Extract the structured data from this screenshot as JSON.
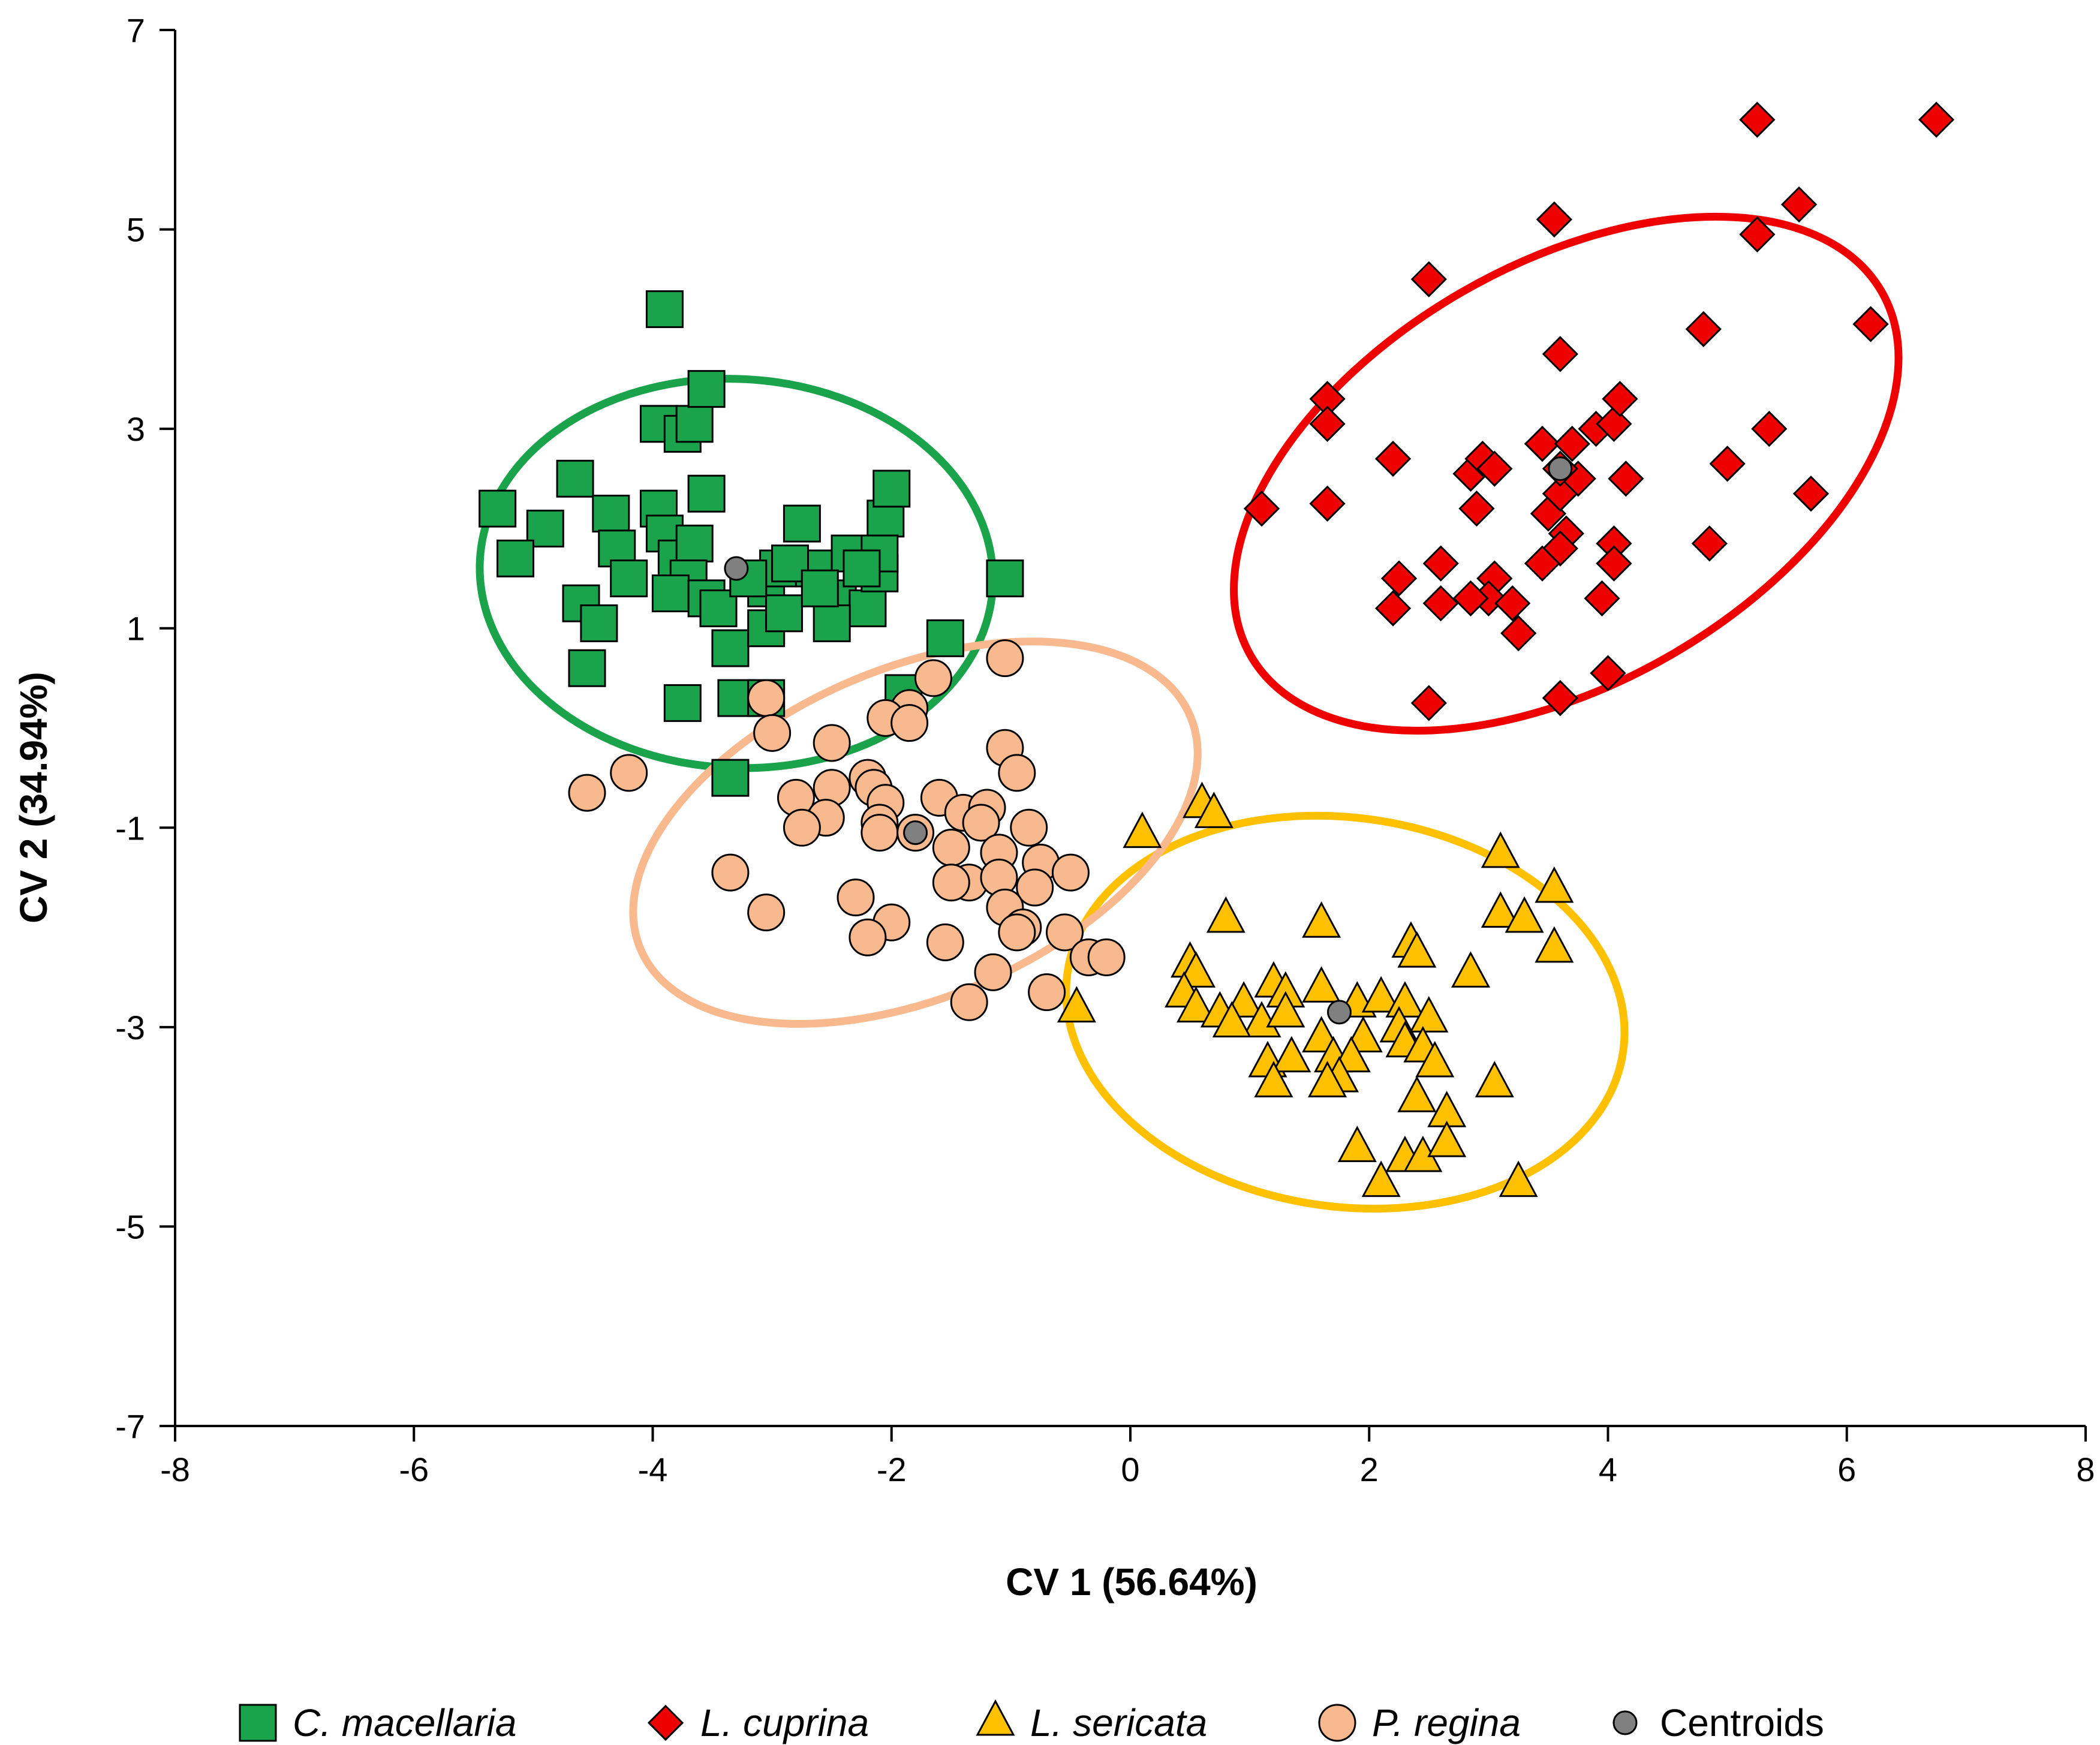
{
  "chart_data": {
    "type": "scatter",
    "xlabel": "CV 1 (56.64%)",
    "ylabel": "CV 2 (34.94%)",
    "xlim": [
      -8,
      8
    ],
    "ylim": [
      -7,
      7
    ],
    "x_ticks": [
      -8,
      -6,
      -4,
      -2,
      0,
      2,
      4,
      6,
      8
    ],
    "y_ticks": [
      -7,
      -5,
      -3,
      -1,
      1,
      3,
      5,
      7
    ],
    "x_tick_labels": [
      "-8",
      "-6",
      "-4",
      "-2",
      "0",
      "2",
      "4",
      "6",
      "8"
    ],
    "y_tick_labels": [
      "-7",
      "-5",
      "-3",
      "-1",
      "1",
      "3",
      "5",
      "7"
    ],
    "grid": false,
    "legend_position": "bottom",
    "series": [
      {
        "name": "C. macellaria",
        "marker": "square",
        "color": "#1aa34a",
        "italic": true,
        "points": [
          [
            -3.9,
            4.2
          ],
          [
            -4.9,
            2.0
          ],
          [
            -5.3,
            2.2
          ],
          [
            -5.15,
            1.7
          ],
          [
            -4.65,
            2.5
          ],
          [
            -4.35,
            2.15
          ],
          [
            -4.3,
            1.8
          ],
          [
            -4.6,
            1.25
          ],
          [
            -4.45,
            1.05
          ],
          [
            -4.55,
            0.6
          ],
          [
            -4.2,
            1.5
          ],
          [
            -3.95,
            3.05
          ],
          [
            -3.75,
            2.95
          ],
          [
            -3.65,
            3.05
          ],
          [
            -3.55,
            3.4
          ],
          [
            -3.55,
            2.35
          ],
          [
            -3.95,
            2.2
          ],
          [
            -3.9,
            1.95
          ],
          [
            -3.8,
            1.7
          ],
          [
            -3.65,
            1.85
          ],
          [
            -3.7,
            1.5
          ],
          [
            -3.85,
            1.35
          ],
          [
            -3.55,
            1.3
          ],
          [
            -3.45,
            1.2
          ],
          [
            -3.35,
            0.8
          ],
          [
            -3.75,
            0.25
          ],
          [
            -3.3,
            0.3
          ],
          [
            -3.35,
            -0.5
          ],
          [
            -3.05,
            1.0
          ],
          [
            -3.05,
            1.4
          ],
          [
            -2.95,
            1.6
          ],
          [
            -2.9,
            1.15
          ],
          [
            -2.75,
            2.05
          ],
          [
            -2.65,
            1.6
          ],
          [
            -2.45,
            1.3
          ],
          [
            -2.35,
            1.75
          ],
          [
            -2.2,
            1.2
          ],
          [
            -2.1,
            1.55
          ],
          [
            -2.05,
            2.1
          ],
          [
            -2.0,
            2.4
          ],
          [
            -2.1,
            1.75
          ],
          [
            -2.25,
            1.6
          ],
          [
            -2.5,
            1.05
          ],
          [
            -1.55,
            0.9
          ],
          [
            -1.9,
            0.35
          ],
          [
            -1.05,
            1.5
          ],
          [
            -3.05,
            0.3
          ],
          [
            -2.85,
            1.65
          ],
          [
            -2.6,
            1.4
          ],
          [
            -3.2,
            1.5
          ]
        ]
      },
      {
        "name": "L. cuprina",
        "marker": "diamond",
        "color": "#ee0000",
        "italic": true,
        "points": [
          [
            5.25,
            6.1
          ],
          [
            6.75,
            6.1
          ],
          [
            3.55,
            5.1
          ],
          [
            5.25,
            4.95
          ],
          [
            5.6,
            5.25
          ],
          [
            2.5,
            4.5
          ],
          [
            4.8,
            4.0
          ],
          [
            6.2,
            4.05
          ],
          [
            3.6,
            3.75
          ],
          [
            1.65,
            3.3
          ],
          [
            1.65,
            3.05
          ],
          [
            2.2,
            2.7
          ],
          [
            2.85,
            2.55
          ],
          [
            2.95,
            2.7
          ],
          [
            3.05,
            2.6
          ],
          [
            3.45,
            2.85
          ],
          [
            3.7,
            2.85
          ],
          [
            3.9,
            3.0
          ],
          [
            4.05,
            3.05
          ],
          [
            4.1,
            3.3
          ],
          [
            5.35,
            3.0
          ],
          [
            4.15,
            2.5
          ],
          [
            5.0,
            2.65
          ],
          [
            5.7,
            2.35
          ],
          [
            1.1,
            2.2
          ],
          [
            1.65,
            2.25
          ],
          [
            2.9,
            2.2
          ],
          [
            3.5,
            2.15
          ],
          [
            3.6,
            2.35
          ],
          [
            3.65,
            1.95
          ],
          [
            3.6,
            1.8
          ],
          [
            3.45,
            1.65
          ],
          [
            4.05,
            1.85
          ],
          [
            4.05,
            1.65
          ],
          [
            4.85,
            1.85
          ],
          [
            2.25,
            1.5
          ],
          [
            2.6,
            1.65
          ],
          [
            3.05,
            1.5
          ],
          [
            3.0,
            1.3
          ],
          [
            2.85,
            1.3
          ],
          [
            3.2,
            1.25
          ],
          [
            2.2,
            1.2
          ],
          [
            2.6,
            1.25
          ],
          [
            3.25,
            0.95
          ],
          [
            3.95,
            1.3
          ],
          [
            2.5,
            0.25
          ],
          [
            3.6,
            0.3
          ],
          [
            4.0,
            0.55
          ],
          [
            3.75,
            2.5
          ],
          [
            3.6,
            2.6
          ]
        ]
      },
      {
        "name": "L. sericata",
        "marker": "triangle",
        "color": "#ffc000",
        "italic": true,
        "points": [
          [
            0.6,
            -0.75
          ],
          [
            0.7,
            -0.85
          ],
          [
            0.1,
            -1.05
          ],
          [
            3.1,
            -1.25
          ],
          [
            3.55,
            -1.6
          ],
          [
            0.8,
            -1.9
          ],
          [
            1.6,
            -1.95
          ],
          [
            3.1,
            -1.85
          ],
          [
            3.3,
            -1.9
          ],
          [
            2.35,
            -2.15
          ],
          [
            2.4,
            -2.25
          ],
          [
            3.55,
            -2.2
          ],
          [
            0.5,
            -2.35
          ],
          [
            0.55,
            -2.45
          ],
          [
            2.85,
            -2.45
          ],
          [
            0.45,
            -2.65
          ],
          [
            0.55,
            -2.8
          ],
          [
            0.75,
            -2.85
          ],
          [
            0.95,
            -2.75
          ],
          [
            1.2,
            -2.55
          ],
          [
            1.3,
            -2.65
          ],
          [
            1.6,
            -2.6
          ],
          [
            1.9,
            -2.75
          ],
          [
            2.1,
            -2.7
          ],
          [
            2.3,
            -2.75
          ],
          [
            2.5,
            -2.9
          ],
          [
            1.1,
            -2.95
          ],
          [
            1.3,
            -2.85
          ],
          [
            0.85,
            -2.95
          ],
          [
            1.6,
            -3.1
          ],
          [
            1.95,
            -3.1
          ],
          [
            2.25,
            -3.0
          ],
          [
            2.3,
            -3.15
          ],
          [
            2.45,
            -3.2
          ],
          [
            1.7,
            -3.3
          ],
          [
            1.85,
            -3.3
          ],
          [
            2.55,
            -3.35
          ],
          [
            1.15,
            -3.35
          ],
          [
            1.35,
            -3.3
          ],
          [
            1.2,
            -3.55
          ],
          [
            1.75,
            -3.5
          ],
          [
            1.65,
            -3.55
          ],
          [
            2.4,
            -3.7
          ],
          [
            2.65,
            -3.85
          ],
          [
            3.05,
            -3.55
          ],
          [
            1.9,
            -4.2
          ],
          [
            2.3,
            -4.3
          ],
          [
            2.45,
            -4.3
          ],
          [
            2.1,
            -4.55
          ],
          [
            3.25,
            -4.55
          ],
          [
            2.65,
            -4.15
          ],
          [
            -0.45,
            -2.8
          ]
        ]
      },
      {
        "name": "P. regina",
        "marker": "circle",
        "color": "#f9b98f",
        "italic": true,
        "points": [
          [
            -1.05,
            0.7
          ],
          [
            -1.65,
            0.5
          ],
          [
            -3.05,
            0.3
          ],
          [
            -1.85,
            0.2
          ],
          [
            -2.05,
            0.1
          ],
          [
            -1.85,
            0.05
          ],
          [
            -3.0,
            -0.05
          ],
          [
            -2.5,
            -0.15
          ],
          [
            -4.2,
            -0.45
          ],
          [
            -4.55,
            -0.65
          ],
          [
            -1.05,
            -0.2
          ],
          [
            -0.95,
            -0.45
          ],
          [
            -2.5,
            -0.6
          ],
          [
            -2.2,
            -0.5
          ],
          [
            -2.15,
            -0.6
          ],
          [
            -2.8,
            -0.7
          ],
          [
            -1.6,
            -0.7
          ],
          [
            -2.05,
            -0.75
          ],
          [
            -1.4,
            -0.85
          ],
          [
            -1.2,
            -0.8
          ],
          [
            -1.25,
            -0.95
          ],
          [
            -2.55,
            -0.9
          ],
          [
            -2.75,
            -1.0
          ],
          [
            -2.1,
            -0.95
          ],
          [
            -2.1,
            -1.05
          ],
          [
            -1.8,
            -1.05
          ],
          [
            -0.85,
            -1.0
          ],
          [
            -1.5,
            -1.2
          ],
          [
            -1.1,
            -1.25
          ],
          [
            -0.75,
            -1.35
          ],
          [
            -0.5,
            -1.45
          ],
          [
            -3.35,
            -1.45
          ],
          [
            -1.35,
            -1.55
          ],
          [
            -1.1,
            -1.5
          ],
          [
            -0.8,
            -1.6
          ],
          [
            -2.3,
            -1.7
          ],
          [
            -1.5,
            -1.55
          ],
          [
            -1.05,
            -1.8
          ],
          [
            -3.05,
            -1.85
          ],
          [
            -2.0,
            -1.95
          ],
          [
            -0.9,
            -2.0
          ],
          [
            -0.55,
            -2.05
          ],
          [
            -2.2,
            -2.1
          ],
          [
            -1.55,
            -2.15
          ],
          [
            -0.35,
            -2.3
          ],
          [
            -0.2,
            -2.3
          ],
          [
            -1.15,
            -2.45
          ],
          [
            -0.7,
            -2.65
          ],
          [
            -1.35,
            -2.75
          ],
          [
            -0.95,
            -2.05
          ]
        ]
      },
      {
        "name": "Centroids",
        "marker": "small-circle",
        "color": "#808080",
        "italic": false,
        "points": [
          [
            -3.3,
            1.6
          ],
          [
            3.6,
            2.6
          ],
          [
            1.75,
            -2.85
          ],
          [
            -1.8,
            -1.05
          ]
        ]
      }
    ],
    "ellipses": [
      {
        "group": "C. macellaria",
        "color": "#1aa34a",
        "center": [
          -3.3,
          1.55
        ],
        "rx": 2.15,
        "ry": 1.95,
        "rotation_deg": -3
      },
      {
        "group": "L. cuprina",
        "color": "#ee0000",
        "center": [
          3.65,
          2.55
        ],
        "rx": 3.05,
        "ry": 2.1,
        "rotation_deg": 30
      },
      {
        "group": "L. sericata",
        "color": "#ffc000",
        "center": [
          1.8,
          -2.85
        ],
        "rx": 2.35,
        "ry": 1.95,
        "rotation_deg": -8
      },
      {
        "group": "P. regina",
        "color": "#f9b98f",
        "center": [
          -1.8,
          -1.05
        ],
        "rx": 2.5,
        "ry": 1.65,
        "rotation_deg": 23
      }
    ]
  }
}
